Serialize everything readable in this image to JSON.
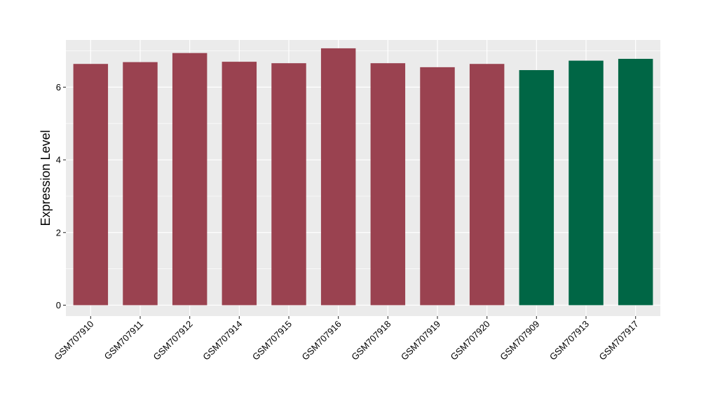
{
  "chart_data": {
    "type": "bar",
    "title": "",
    "xlabel": "",
    "ylabel": "Expression Level",
    "ylim": [
      -0.3,
      7.3
    ],
    "yticks": [
      0,
      2,
      4,
      6
    ],
    "grid": true,
    "panel_background": "#ebebeb",
    "grid_color": "#ffffff",
    "categories": [
      "GSM707910",
      "GSM707911",
      "GSM707912",
      "GSM707914",
      "GSM707915",
      "GSM707916",
      "GSM707918",
      "GSM707919",
      "GSM707920",
      "GSM707909",
      "GSM707913",
      "GSM707917"
    ],
    "values": [
      6.64,
      6.69,
      6.94,
      6.7,
      6.66,
      7.07,
      6.66,
      6.55,
      6.64,
      6.47,
      6.73,
      6.78
    ],
    "bar_colors": [
      "#9a4250",
      "#9a4250",
      "#9a4250",
      "#9a4250",
      "#9a4250",
      "#9a4250",
      "#9a4250",
      "#9a4250",
      "#9a4250",
      "#006645",
      "#006645",
      "#006645"
    ]
  }
}
